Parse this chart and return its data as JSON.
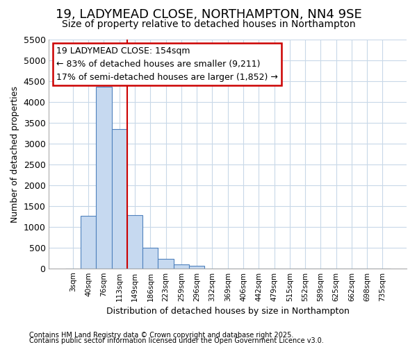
{
  "title": "19, LADYMEAD CLOSE, NORTHAMPTON, NN4 9SE",
  "subtitle": "Size of property relative to detached houses in Northampton",
  "xlabel": "Distribution of detached houses by size in Northampton",
  "ylabel": "Number of detached properties",
  "categories": [
    "3sqm",
    "40sqm",
    "76sqm",
    "113sqm",
    "149sqm",
    "186sqm",
    "223sqm",
    "259sqm",
    "296sqm",
    "332sqm",
    "369sqm",
    "406sqm",
    "442sqm",
    "479sqm",
    "515sqm",
    "552sqm",
    "589sqm",
    "625sqm",
    "662sqm",
    "698sqm",
    "735sqm"
  ],
  "bar_values": [
    0,
    1270,
    4380,
    3350,
    1280,
    500,
    230,
    100,
    55,
    0,
    0,
    0,
    0,
    0,
    0,
    0,
    0,
    0,
    0,
    0,
    0
  ],
  "bar_color": "#c6d9f0",
  "bar_edge_color": "#4f81bd",
  "vline_color": "#cc0000",
  "annotation_text": "19 LADYMEAD CLOSE: 154sqm\n← 83% of detached houses are smaller (9,211)\n17% of semi-detached houses are larger (1,852) →",
  "annotation_box_color": "#cc0000",
  "ylim": [
    0,
    5500
  ],
  "yticks": [
    0,
    500,
    1000,
    1500,
    2000,
    2500,
    3000,
    3500,
    4000,
    4500,
    5000,
    5500
  ],
  "footer1": "Contains HM Land Registry data © Crown copyright and database right 2025.",
  "footer2": "Contains public sector information licensed under the Open Government Licence v3.0.",
  "bg_color": "#ffffff",
  "grid_color": "#c8d8e8",
  "title_fontsize": 13,
  "subtitle_fontsize": 10,
  "annot_fontsize": 9
}
